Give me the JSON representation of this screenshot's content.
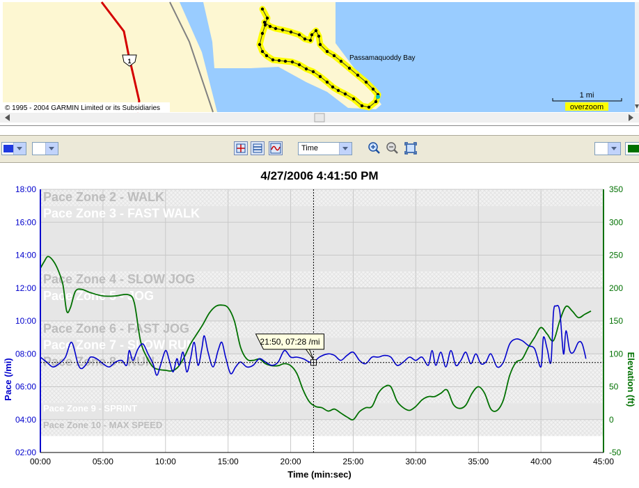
{
  "map": {
    "copyright": "© 1995 - 2004 GARMIN Limited or its Subsidiaries",
    "bay_label": "Passamaquoddy Bay",
    "route_label": "1",
    "scale_label": "1 mi",
    "zoom_label": "overzoom",
    "colors": {
      "water": "#99ccff",
      "land": "#fdf7d2",
      "route": "#ffff00",
      "road": "#d40000"
    }
  },
  "toolbar": {
    "x_axis_select": "Time",
    "icons": [
      "crosshair-icon",
      "horizontal-lines-icon",
      "wave-icon",
      "zoom-in-icon",
      "zoom-out-icon",
      "fit-icon"
    ]
  },
  "chart_data": {
    "type": "line",
    "title": "4/27/2006 4:41:50 PM",
    "xlabel": "Time (min:sec)",
    "ylabel_left": "Pace (/mi)",
    "ylabel_right": "Elevation (ft)",
    "x_ticks": [
      "00:00",
      "05:00",
      "10:00",
      "15:00",
      "20:00",
      "25:00",
      "30:00",
      "35:00",
      "40:00",
      "45:00"
    ],
    "y_left_ticks": [
      "02:00",
      "04:00",
      "06:00",
      "08:00",
      "10:00",
      "12:00",
      "14:00",
      "16:00",
      "18:00"
    ],
    "y_right_ticks": [
      "-50",
      "0",
      "50",
      "100",
      "150",
      "200",
      "250",
      "300",
      "350"
    ],
    "xlim_minutes": [
      0,
      45
    ],
    "ylim_left_minutes": [
      2,
      18
    ],
    "ylim_right_ft": [
      -50,
      350
    ],
    "zones": [
      {
        "label": "Pace Zone 2 - WALK",
        "from": 17,
        "to": 18,
        "shade": "hatch"
      },
      {
        "label": "Pace Zone 3 - FAST WALK",
        "from": 13,
        "to": 17,
        "shade": "gray"
      },
      {
        "label": "Pace Zone 4 - SLOW JOG",
        "from": 12,
        "to": 13,
        "shade": "hatch"
      },
      {
        "label": "Pace Zone 5 - JOG",
        "from": 10,
        "to": 12,
        "shade": "gray"
      },
      {
        "label": "Pace Zone 6 - FAST JOG",
        "from": 9,
        "to": 10,
        "shade": "hatch"
      },
      {
        "label": "Pace Zone 7 - SLOW RUN",
        "from": 8,
        "to": 9,
        "shade": "gray"
      },
      {
        "label": "Pace Zone 8 - RUN",
        "from": 5,
        "to": 8,
        "shade": "hatch"
      },
      {
        "label": "Pace Zone 9 - SPRINT",
        "from": 4,
        "to": 5,
        "shade": "gray"
      },
      {
        "label": "Pace Zone 10 - MAX SPEED",
        "from": 3,
        "to": 4,
        "shade": "hatch"
      }
    ],
    "cursor": {
      "x_minutes": 21.83,
      "pace_minutes": 7.47,
      "label": "21:50, 07:28 /mi"
    },
    "series": [
      {
        "name": "Pace",
        "color": "#0000cc",
        "axis": "left",
        "x": [
          0,
          0.5,
          1,
          1.5,
          2,
          2.5,
          3,
          3.3,
          3.7,
          4,
          4.5,
          5,
          5.5,
          6,
          6.5,
          6.9,
          7.1,
          7.4,
          7.8,
          8.2,
          8.6,
          9,
          9.3,
          9.6,
          10,
          10.3,
          10.6,
          10.9,
          11.1,
          11.4,
          11.7,
          12,
          12.3,
          12.6,
          12.9,
          13.1,
          13.4,
          13.8,
          14.2,
          14.5,
          14.8,
          15.2,
          15.6,
          16,
          16.5,
          17,
          17.5,
          18,
          18.5,
          19,
          19.5,
          20,
          20.5,
          21,
          21.5,
          21.83,
          22.3,
          23,
          23.5,
          24,
          24.5,
          25,
          25.5,
          26,
          26.5,
          27,
          27.5,
          28,
          28.5,
          29,
          29.5,
          30,
          30.5,
          31,
          31.3,
          31.6,
          32,
          32.4,
          32.8,
          33.2,
          33.6,
          34,
          34.4,
          34.8,
          35.2,
          35.6,
          36,
          36.5,
          37,
          37.5,
          38,
          38.5,
          39,
          39.5,
          40,
          40.2,
          40.5,
          40.8,
          41,
          41.2,
          41.5,
          41.8,
          42,
          42.3,
          42.6,
          43,
          43.3,
          43.6
        ],
        "pace": [
          7.8,
          7.5,
          7.2,
          7.4,
          7.8,
          8.7,
          7.4,
          7.1,
          7.4,
          7.8,
          7.7,
          7.4,
          7.2,
          7.5,
          7.6,
          7.3,
          8.2,
          7.6,
          8.3,
          8.6,
          8.0,
          7.4,
          6.7,
          7.3,
          8.2,
          7.6,
          6.9,
          7.7,
          7.3,
          8.1,
          6.9,
          7.7,
          8.7,
          7.3,
          8.3,
          9.1,
          8.1,
          7.2,
          8.2,
          8.7,
          7.8,
          6.8,
          7.2,
          7.5,
          7.2,
          7.3,
          7.7,
          7.5,
          7.3,
          7.5,
          8.2,
          7.8,
          7.8,
          7.7,
          7.5,
          7.47,
          7.8,
          8.0,
          7.9,
          7.6,
          7.9,
          8.1,
          7.6,
          7.4,
          7.8,
          7.8,
          7.9,
          7.8,
          7.3,
          7.5,
          7.8,
          7.6,
          7.8,
          7.3,
          8.2,
          7.3,
          8.1,
          7.2,
          8.2,
          7.3,
          7.6,
          8.1,
          7.4,
          8.0,
          7.4,
          7.5,
          8.0,
          7.2,
          7.5,
          8.6,
          8.9,
          8.8,
          8.5,
          8.3,
          7.2,
          9.0,
          8.3,
          7.5,
          10.5,
          10.9,
          10.6,
          8.0,
          9.4,
          8.2,
          8.1,
          8.7,
          8.6,
          7.7
        ],
        "points": [
          {
            "x": 0,
            "p": 7.8
          },
          {
            "x": 1,
            "p": 7.2
          },
          {
            "x": 2,
            "p": 7.8
          },
          {
            "x": 2.5,
            "p": 8.7
          },
          {
            "x": 3.3,
            "p": 7.1
          },
          {
            "x": 4.5,
            "p": 7.7
          },
          {
            "x": 6,
            "p": 7.5
          },
          {
            "x": 6.9,
            "p": 7.3
          },
          {
            "x": 7.1,
            "p": 8.2
          },
          {
            "x": 7.4,
            "p": 7.6
          }
        ]
      },
      {
        "name": "Elevation",
        "color": "#007000",
        "axis": "right",
        "x": [
          0,
          0.3,
          0.6,
          1,
          1.4,
          1.8,
          2.1,
          2.4,
          2.8,
          3.3,
          4,
          5,
          6,
          7,
          7.5,
          8,
          8.5,
          9,
          9.5,
          10,
          10.5,
          11,
          11.5,
          12,
          12.5,
          13,
          13.5,
          14,
          14.5,
          15,
          15.5,
          16,
          16.5,
          17,
          17.5,
          18,
          18.5,
          19,
          19.5,
          20,
          20.5,
          21,
          21.5,
          22,
          22.5,
          23,
          23.5,
          24,
          24.5,
          25,
          25.5,
          26,
          26.5,
          27,
          27.5,
          28,
          28.5,
          29,
          29.5,
          30,
          30.5,
          31,
          31.5,
          32,
          32.5,
          33,
          33.5,
          34,
          34.5,
          35,
          35.5,
          36,
          36.5,
          37,
          37.5,
          38,
          38.5,
          39,
          39.5,
          40,
          40.5,
          41,
          41.5,
          42,
          42.5,
          43,
          43.5,
          44
        ],
        "elevation": [
          230,
          240,
          248,
          242,
          228,
          205,
          165,
          170,
          195,
          198,
          193,
          188,
          188,
          190,
          178,
          120,
          95,
          80,
          76,
          75,
          74,
          80,
          95,
          115,
          130,
          145,
          162,
          172,
          174,
          170,
          150,
          110,
          92,
          90,
          92,
          85,
          82,
          82,
          85,
          82,
          70,
          45,
          27,
          20,
          18,
          13,
          16,
          10,
          4,
          0,
          12,
          18,
          20,
          40,
          50,
          50,
          28,
          18,
          14,
          20,
          30,
          35,
          35,
          40,
          45,
          23,
          17,
          22,
          40,
          50,
          40,
          16,
          14,
          30,
          67,
          87,
          92,
          110,
          125,
          140,
          130,
          120,
          150,
          172,
          165,
          155,
          160,
          165
        ]
      }
    ]
  }
}
